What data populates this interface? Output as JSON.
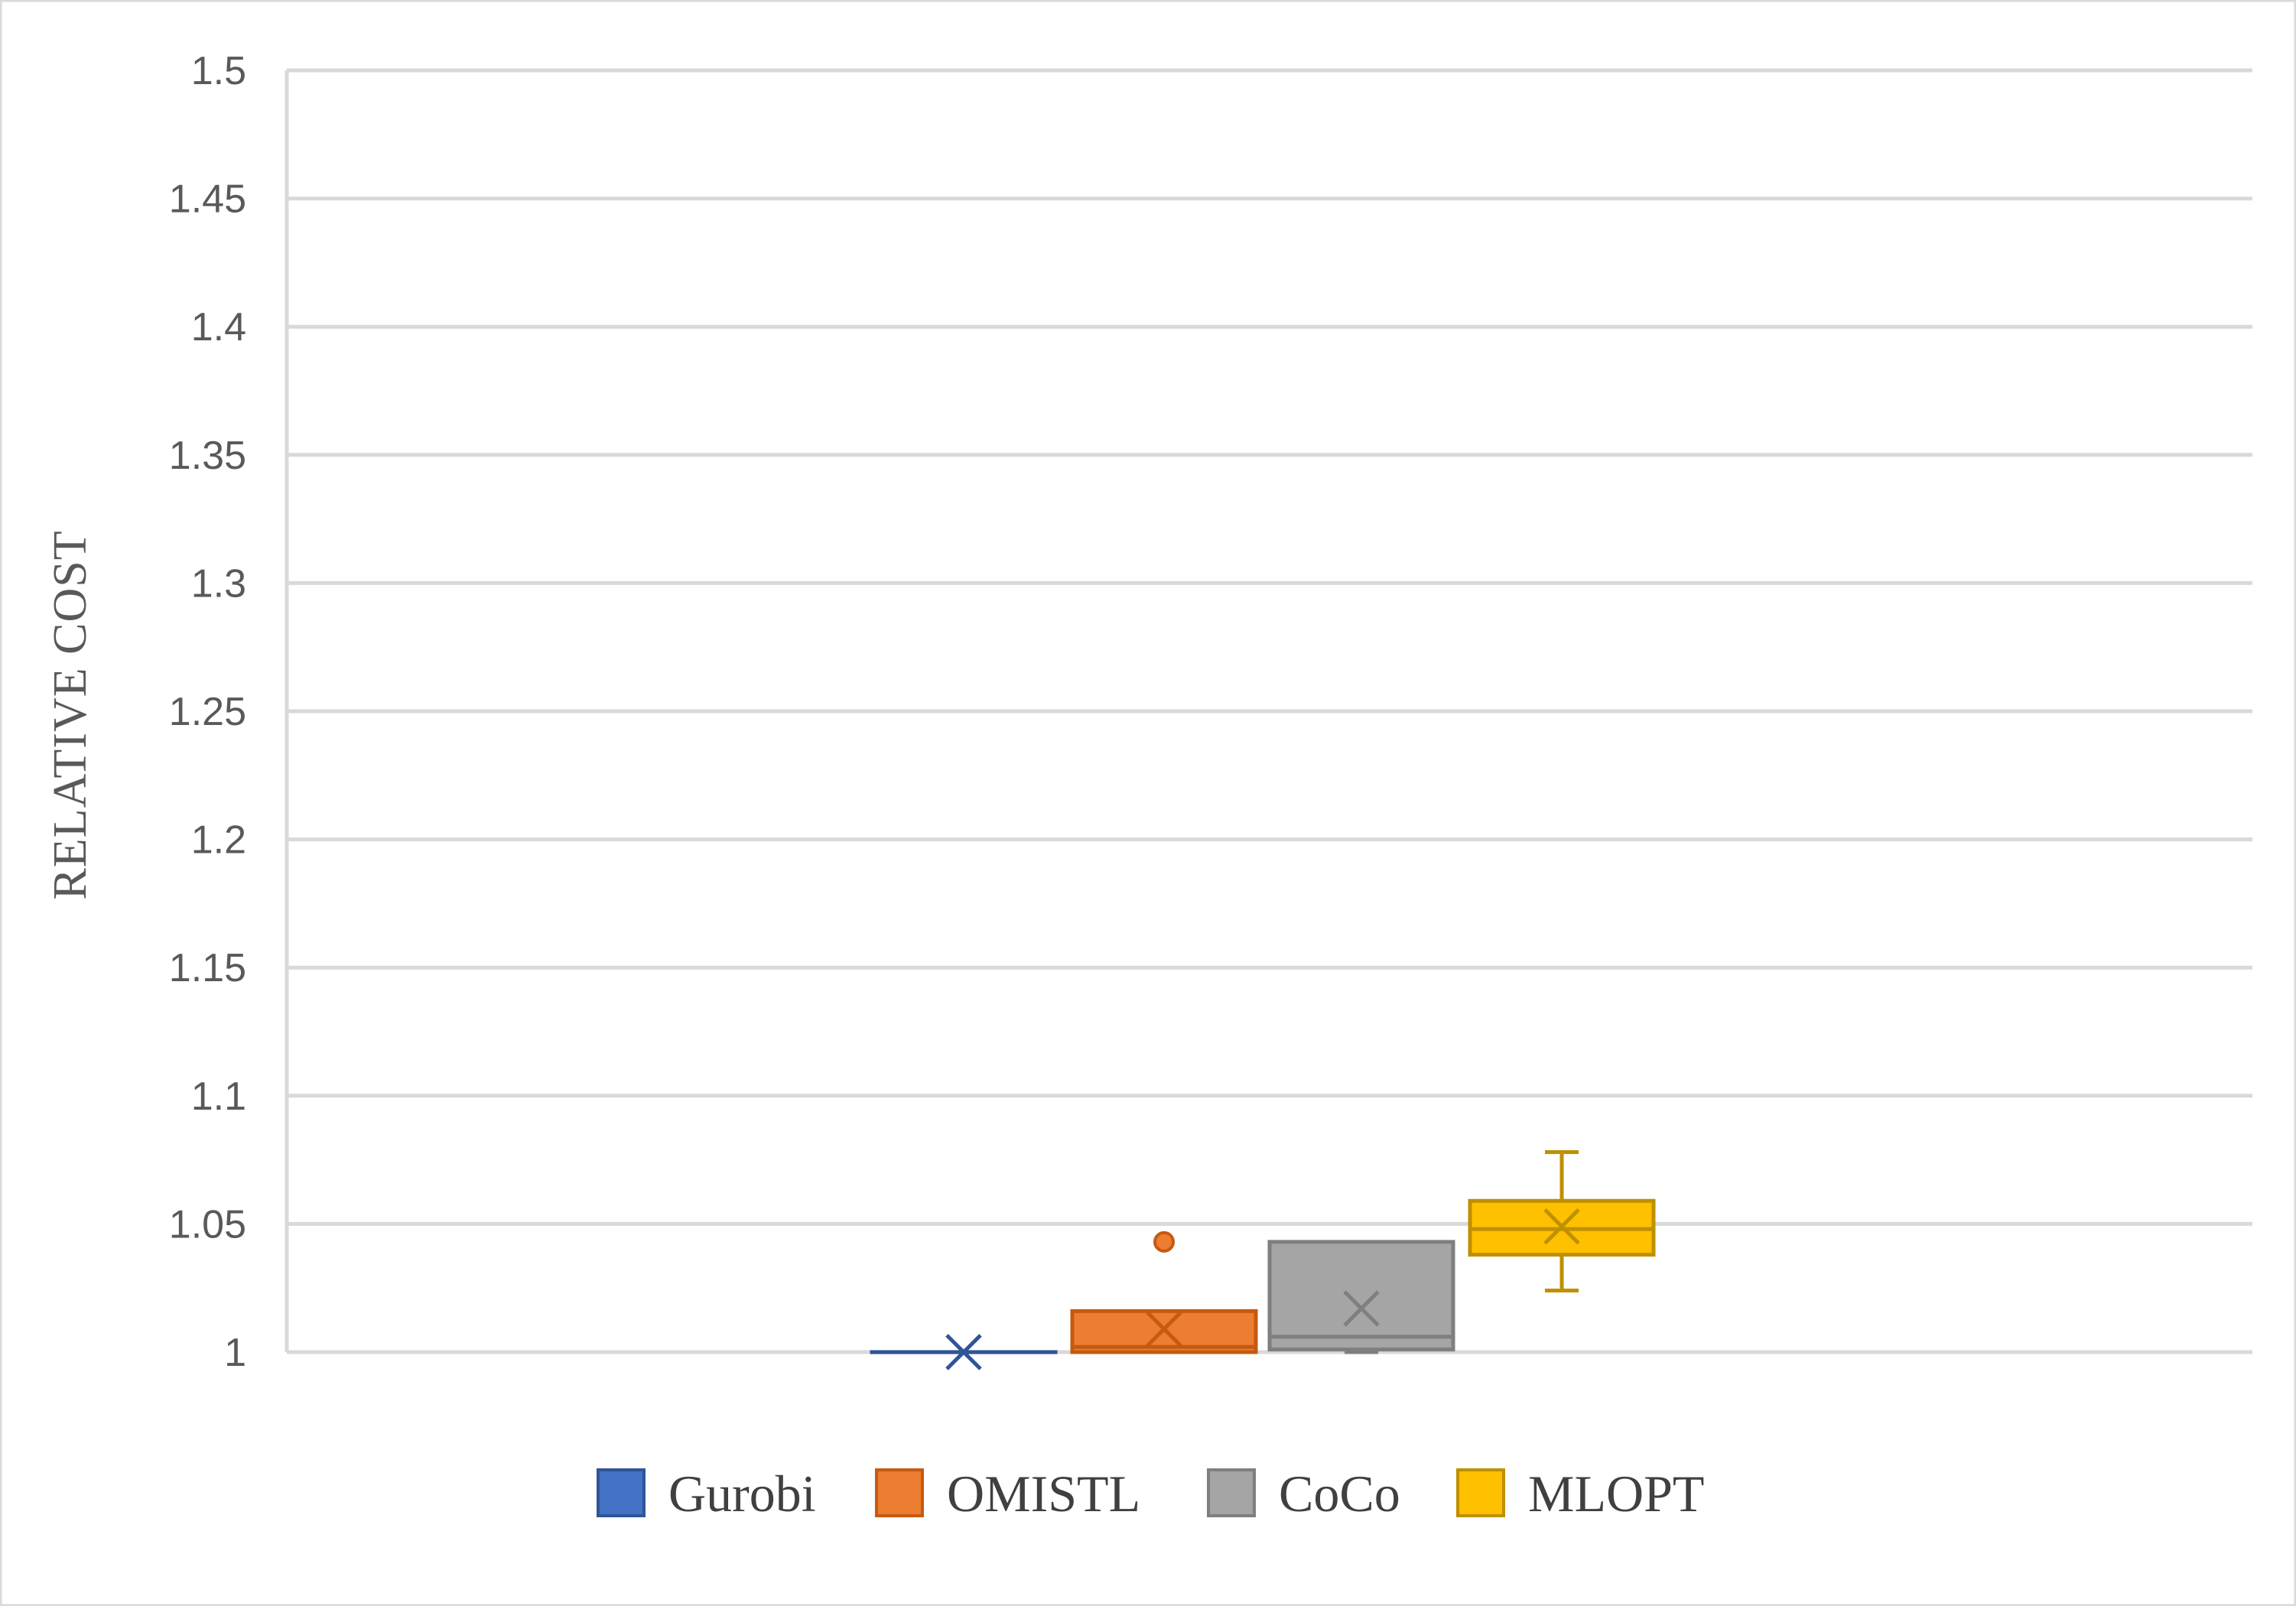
{
  "chart_data": {
    "type": "box",
    "title": "",
    "xlabel": "",
    "ylabel": "RELATIVE COST",
    "ylim": [
      1,
      1.5
    ],
    "yticks": [
      "1",
      "1.05",
      "1.1",
      "1.15",
      "1.2",
      "1.25",
      "1.3",
      "1.35",
      "1.4",
      "1.45",
      "1.5"
    ],
    "grid": true,
    "legend_position": "bottom",
    "series": [
      {
        "name": "Gurobi",
        "color": "#4472C4",
        "stroke": "#2F5597",
        "min": 1.0,
        "q1": 1.0,
        "median": 1.0,
        "q3": 1.0,
        "max": 1.0,
        "mean": 1.0,
        "outliers": []
      },
      {
        "name": "OMISTL",
        "color": "#ED7D31",
        "stroke": "#C55A11",
        "min": 1.0,
        "q1": 1.0,
        "median": 1.002,
        "q3": 1.016,
        "max": 1.016,
        "mean": 1.009,
        "outliers": [
          1.043
        ]
      },
      {
        "name": "CoCo",
        "color": "#A5A5A5",
        "stroke": "#7F7F7F",
        "min": 1.0,
        "q1": 1.001,
        "median": 1.006,
        "q3": 1.043,
        "max": 1.043,
        "mean": 1.017,
        "outliers": []
      },
      {
        "name": "MLOPT",
        "color": "#FFC000",
        "stroke": "#BF9000",
        "min": 1.024,
        "q1": 1.038,
        "median": 1.048,
        "q3": 1.059,
        "max": 1.078,
        "mean": 1.049,
        "outliers": []
      }
    ]
  }
}
